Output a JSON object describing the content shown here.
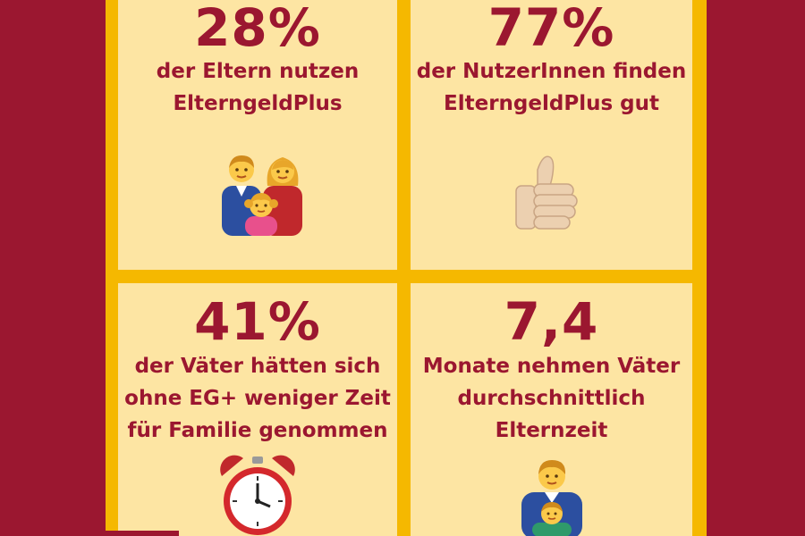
{
  "tiles": [
    {
      "value": "28%",
      "lines": [
        "der Eltern nutzen",
        "ElterngeldPlus"
      ],
      "icon": "family-emoji"
    },
    {
      "value": "77%",
      "lines": [
        "der NutzerInnen finden",
        "ElterngeldPlus gut"
      ],
      "icon": "thumbs-up-emoji"
    },
    {
      "value": "41%",
      "lines": [
        "der Väter hätten sich",
        "ohne EG+ weniger Zeit",
        "für Familie genommen"
      ],
      "icon": "alarm-clock-emoji"
    },
    {
      "value": "7,4",
      "lines": [
        "Monate nehmen Väter",
        "durchschnittlich",
        "Elternzeit"
      ],
      "icon": "father-son-emoji"
    }
  ],
  "colors": {
    "background": "#9b1730",
    "frame": "#f5b800",
    "tile": "#fde5a3",
    "text": "#9b1730"
  }
}
